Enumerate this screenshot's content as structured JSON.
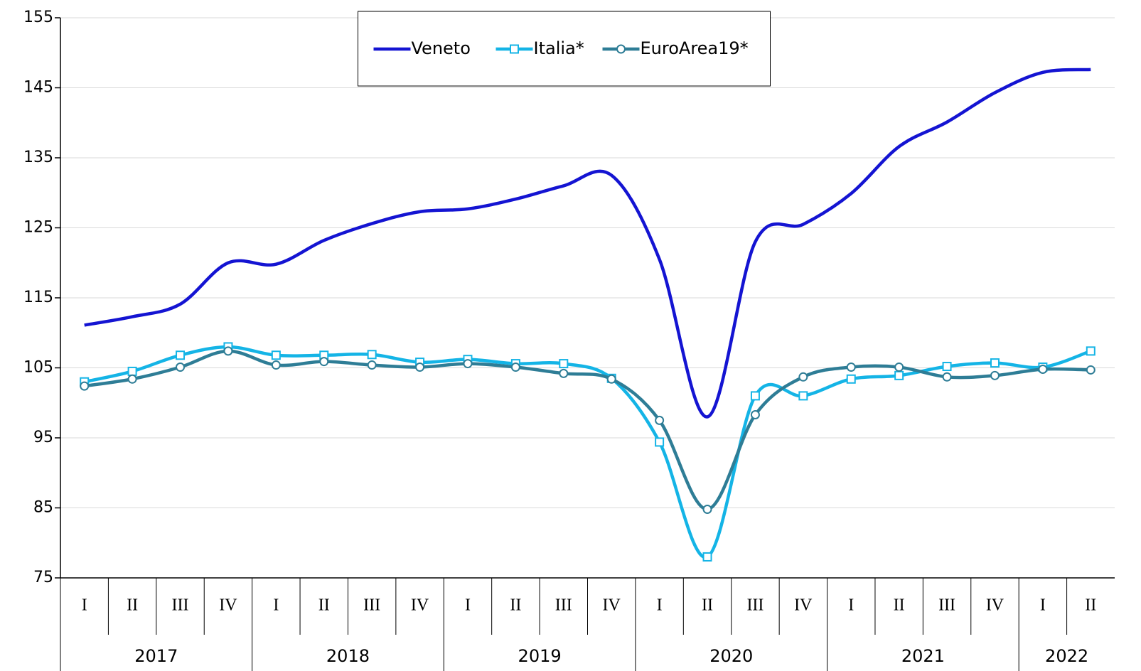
{
  "chart_data": {
    "type": "line",
    "categories": [
      "I",
      "II",
      "III",
      "IV",
      "I",
      "II",
      "III",
      "IV",
      "I",
      "II",
      "III",
      "IV",
      "I",
      "II",
      "III",
      "IV",
      "I",
      "II",
      "III",
      "IV",
      "I",
      "II"
    ],
    "x_groups": [
      {
        "label": "2017",
        "count": 4
      },
      {
        "label": "2018",
        "count": 4
      },
      {
        "label": "2019",
        "count": 4
      },
      {
        "label": "2020",
        "count": 4
      },
      {
        "label": "2021",
        "count": 4
      },
      {
        "label": "2022",
        "count": 2
      }
    ],
    "series": [
      {
        "name": "Veneto",
        "color": "#1414d2",
        "marker": "none",
        "values": [
          111.1,
          112.3,
          114.1,
          120.0,
          119.8,
          123.2,
          125.6,
          127.3,
          127.7,
          129.1,
          131.0,
          132.5,
          120.5,
          98.0,
          123.0,
          125.5,
          129.9,
          136.6,
          140.1,
          144.3,
          147.2,
          147.6
        ]
      },
      {
        "name": "Italia*",
        "color": "#14b4e6",
        "marker": "square",
        "values": [
          103.0,
          104.5,
          106.8,
          108.0,
          106.8,
          106.8,
          106.9,
          105.8,
          106.2,
          105.6,
          105.6,
          103.5,
          94.4,
          78.0,
          101.0,
          101.0,
          103.4,
          103.9,
          105.2,
          105.7,
          105.1,
          107.4
        ]
      },
      {
        "name": "EuroArea19*",
        "color": "#2e7d96",
        "marker": "circle",
        "values": [
          102.4,
          103.4,
          105.1,
          107.4,
          105.4,
          105.9,
          105.4,
          105.1,
          105.6,
          105.1,
          104.2,
          103.4,
          97.5,
          84.8,
          98.3,
          103.7,
          105.1,
          105.1,
          103.7,
          103.9,
          104.8,
          104.7
        ]
      }
    ],
    "ylim": [
      75,
      155
    ],
    "yticks": [
      75,
      85,
      95,
      105,
      115,
      125,
      135,
      145,
      155
    ],
    "grid": true,
    "legend": "top-center",
    "smooth": true
  }
}
